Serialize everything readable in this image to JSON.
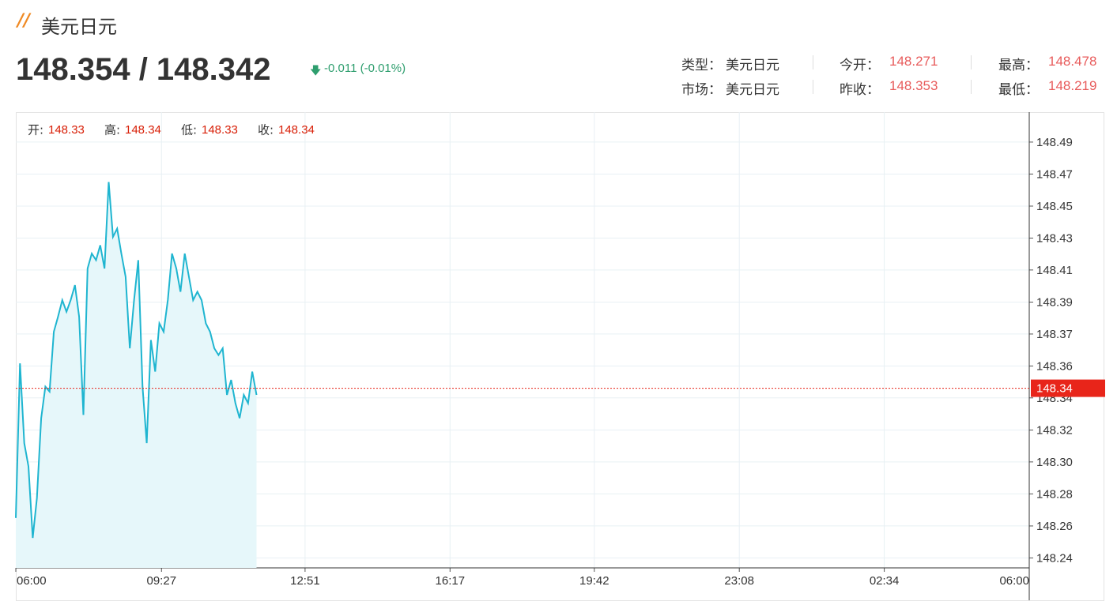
{
  "header": {
    "title": "美元日元",
    "price": "148.354 / 148.342",
    "change": "-0.011 (-0.01%)",
    "info": [
      {
        "label": "类型：",
        "value": "美元日元"
      },
      {
        "label": "今开：",
        "value": "148.271"
      },
      {
        "label": "最高：",
        "value": "148.478"
      },
      {
        "label": "市场：",
        "value": "美元日元"
      },
      {
        "label": "昨收：",
        "value": "148.353"
      },
      {
        "label": "最低：",
        "value": "148.219"
      }
    ]
  },
  "chart_data": {
    "type": "area",
    "color": "#1fb5d0",
    "fill": "#e6f7fa",
    "grid": true,
    "ohlc": [
      {
        "label": "开:",
        "value": 148.33
      },
      {
        "label": "高:",
        "value": 148.34
      },
      {
        "label": "低:",
        "value": 148.33
      },
      {
        "label": "收:",
        "value": 148.34
      }
    ],
    "x": [
      "06:00",
      "06:06",
      "06:12",
      "06:18",
      "06:24",
      "06:30",
      "06:36",
      "06:42",
      "06:48",
      "06:54",
      "07:00",
      "07:06",
      "07:12",
      "07:18",
      "07:24",
      "07:30",
      "07:36",
      "07:42",
      "07:48",
      "07:54",
      "08:00",
      "08:06",
      "08:12",
      "08:18",
      "08:24",
      "08:30",
      "08:36",
      "08:42",
      "08:48",
      "08:54",
      "09:00",
      "09:06",
      "09:12",
      "09:18",
      "09:24",
      "09:30",
      "09:36",
      "09:42",
      "09:48",
      "09:54",
      "10:00",
      "10:06",
      "10:12",
      "10:18",
      "10:24",
      "10:30",
      "10:36",
      "10:42",
      "10:48",
      "10:54",
      "11:00",
      "11:06",
      "11:12",
      "11:18",
      "11:24",
      "11:30",
      "11:36",
      "11:42"
    ],
    "values": [
      148.264,
      148.357,
      148.309,
      148.295,
      148.252,
      148.276,
      148.324,
      148.343,
      148.34,
      148.376,
      148.385,
      148.395,
      148.388,
      148.395,
      148.404,
      148.385,
      148.326,
      148.414,
      148.423,
      148.419,
      148.428,
      148.414,
      148.466,
      148.433,
      148.438,
      148.423,
      148.409,
      148.366,
      148.395,
      148.419,
      148.343,
      148.309,
      148.371,
      148.352,
      148.381,
      148.376,
      148.395,
      148.423,
      148.414,
      148.4,
      148.423,
      148.409,
      148.395,
      148.4,
      148.395,
      148.381,
      148.376,
      148.366,
      148.362,
      148.366,
      148.338,
      148.347,
      148.333,
      148.324,
      148.338,
      148.333,
      148.352,
      148.338
    ],
    "xticks": [
      "06:00",
      "09:27",
      "12:51",
      "16:17",
      "19:42",
      "23:08",
      "02:34",
      "06:00"
    ],
    "ylim": [
      148.234,
      148.508
    ],
    "yticks": [
      148.24,
      {
        "value": 148.2592,
        "label": "148.26"
      },
      {
        "value": 148.2785,
        "label": "148.28"
      },
      {
        "value": 148.2977,
        "label": "148.30"
      },
      {
        "value": 148.3169,
        "label": "148.32"
      },
      {
        "value": 148.3362,
        "label": "148.34"
      },
      {
        "value": 148.3554,
        "label": "148.36"
      },
      {
        "value": 148.3746,
        "label": "148.37"
      },
      {
        "value": 148.3938,
        "label": "148.39"
      },
      {
        "value": 148.4131,
        "label": "148.41"
      },
      {
        "value": 148.4323,
        "label": "148.43"
      },
      {
        "value": 148.4515,
        "label": "148.45"
      },
      {
        "value": 148.4708,
        "label": "148.47"
      },
      148.49
    ],
    "last_price": {
      "value": 148.342,
      "label": "148.34",
      "color": "#e8251a"
    }
  }
}
